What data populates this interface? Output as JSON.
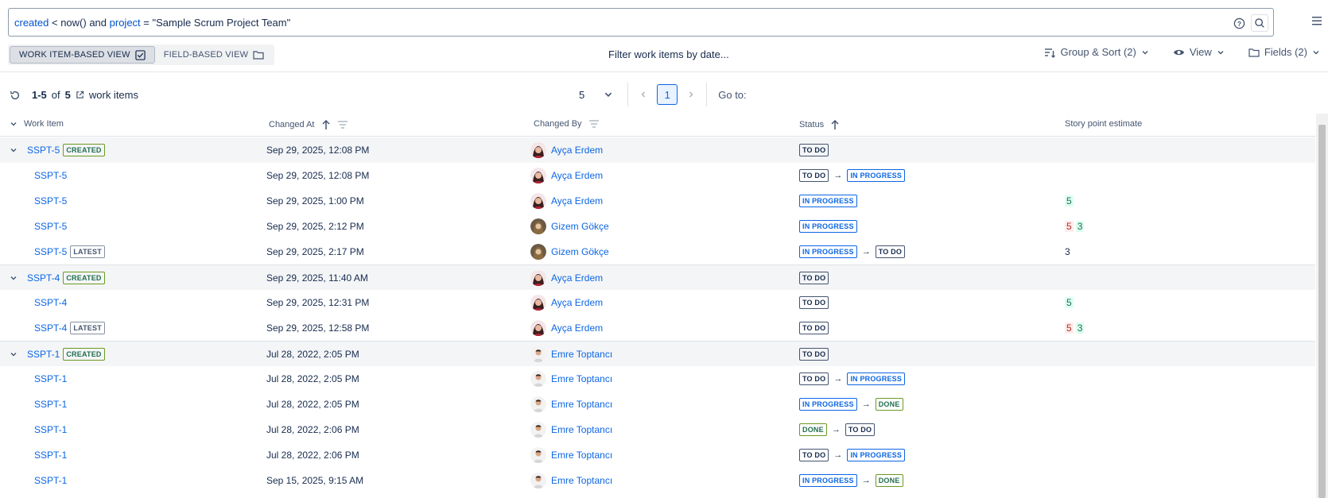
{
  "query": {
    "parts": [
      {
        "text": "created",
        "type": "kw"
      },
      {
        "text": " < ",
        "type": "op"
      },
      {
        "text": "now()",
        "type": "func"
      },
      {
        "text": " and ",
        "type": "op"
      },
      {
        "text": " project",
        "type": "kw"
      },
      {
        "text": " = ",
        "type": "op"
      },
      {
        "text": "\"Sample Scrum Project Team\"",
        "type": "str"
      }
    ]
  },
  "view_toggle": {
    "work_item_label": "WORK ITEM-BASED VIEW",
    "field_label": "FIELD-BASED VIEW"
  },
  "filter_date_label": "Filter work items by date...",
  "toolbar": {
    "group_sort": "Group & Sort (2)",
    "view": "View",
    "fields": "Fields (2)"
  },
  "results": {
    "range": "1-5",
    "of": "of",
    "total": "5",
    "suffix": "work items"
  },
  "pager": {
    "page_size": "5",
    "current_page": "1",
    "goto_label": "Go to:"
  },
  "columns": {
    "work_item": "Work Item",
    "changed_at": "Changed At",
    "changed_by": "Changed By",
    "status": "Status",
    "story_points": "Story point estimate"
  },
  "rows": [
    {
      "key": "SSPT-5",
      "parent": true,
      "badge": "CREATED",
      "date": "Sep 29, 2025, 12:08 PM",
      "by": "Ayça Erdem",
      "avatar": "f1",
      "status": [
        {
          "t": "TO DO",
          "c": "todo"
        }
      ],
      "sp": []
    },
    {
      "key": "SSPT-5",
      "parent": false,
      "badge": "",
      "date": "Sep 29, 2025, 12:08 PM",
      "by": "Ayça Erdem",
      "avatar": "f1",
      "status": [
        {
          "t": "TO DO",
          "c": "todo"
        },
        {
          "t": "IN PROGRESS",
          "c": "inprog"
        }
      ],
      "sp": []
    },
    {
      "key": "SSPT-5",
      "parent": false,
      "badge": "",
      "date": "Sep 29, 2025, 1:00 PM",
      "by": "Ayça Erdem",
      "avatar": "f1",
      "status": [
        {
          "t": "IN PROGRESS",
          "c": "inprog"
        }
      ],
      "sp": [
        {
          "v": "5",
          "c": "add"
        }
      ]
    },
    {
      "key": "SSPT-5",
      "parent": false,
      "badge": "",
      "date": "Sep 29, 2025, 2:12 PM",
      "by": "Gizem Gökçe",
      "avatar": "f2",
      "status": [
        {
          "t": "IN PROGRESS",
          "c": "inprog"
        }
      ],
      "sp": [
        {
          "v": "5",
          "c": "del"
        },
        {
          "v": "3",
          "c": "add"
        }
      ]
    },
    {
      "key": "SSPT-5",
      "parent": false,
      "badge": "LATEST",
      "date": "Sep 29, 2025, 2:17 PM",
      "by": "Gizem Gökçe",
      "avatar": "f2",
      "status": [
        {
          "t": "IN PROGRESS",
          "c": "inprog"
        },
        {
          "t": "TO DO",
          "c": "todo"
        }
      ],
      "sp": [
        {
          "v": "3",
          "c": "plain"
        }
      ]
    },
    {
      "key": "SSPT-4",
      "parent": true,
      "badge": "CREATED",
      "date": "Sep 29, 2025, 11:40 AM",
      "by": "Ayça Erdem",
      "avatar": "f1",
      "status": [
        {
          "t": "TO DO",
          "c": "todo"
        }
      ],
      "sp": []
    },
    {
      "key": "SSPT-4",
      "parent": false,
      "badge": "",
      "date": "Sep 29, 2025, 12:31 PM",
      "by": "Ayça Erdem",
      "avatar": "f1",
      "status": [
        {
          "t": "TO DO",
          "c": "todo"
        }
      ],
      "sp": [
        {
          "v": "5",
          "c": "add"
        }
      ]
    },
    {
      "key": "SSPT-4",
      "parent": false,
      "badge": "LATEST",
      "date": "Sep 29, 2025, 12:58 PM",
      "by": "Ayça Erdem",
      "avatar": "f1",
      "status": [
        {
          "t": "TO DO",
          "c": "todo"
        }
      ],
      "sp": [
        {
          "v": "5",
          "c": "del"
        },
        {
          "v": "3",
          "c": "add"
        }
      ]
    },
    {
      "key": "SSPT-1",
      "parent": true,
      "badge": "CREATED",
      "date": "Jul 28, 2022, 2:05 PM",
      "by": "Emre Toptancı",
      "avatar": "m1",
      "status": [
        {
          "t": "TO DO",
          "c": "todo"
        }
      ],
      "sp": []
    },
    {
      "key": "SSPT-1",
      "parent": false,
      "badge": "",
      "date": "Jul 28, 2022, 2:05 PM",
      "by": "Emre Toptancı",
      "avatar": "m1",
      "status": [
        {
          "t": "TO DO",
          "c": "todo"
        },
        {
          "t": "IN PROGRESS",
          "c": "inprog"
        }
      ],
      "sp": []
    },
    {
      "key": "SSPT-1",
      "parent": false,
      "badge": "",
      "date": "Jul 28, 2022, 2:05 PM",
      "by": "Emre Toptancı",
      "avatar": "m1",
      "status": [
        {
          "t": "IN PROGRESS",
          "c": "inprog"
        },
        {
          "t": "DONE",
          "c": "done"
        }
      ],
      "sp": []
    },
    {
      "key": "SSPT-1",
      "parent": false,
      "badge": "",
      "date": "Jul 28, 2022, 2:06 PM",
      "by": "Emre Toptancı",
      "avatar": "m1",
      "status": [
        {
          "t": "DONE",
          "c": "done"
        },
        {
          "t": "TO DO",
          "c": "todo"
        }
      ],
      "sp": []
    },
    {
      "key": "SSPT-1",
      "parent": false,
      "badge": "",
      "date": "Jul 28, 2022, 2:06 PM",
      "by": "Emre Toptancı",
      "avatar": "m1",
      "status": [
        {
          "t": "TO DO",
          "c": "todo"
        },
        {
          "t": "IN PROGRESS",
          "c": "inprog"
        }
      ],
      "sp": []
    },
    {
      "key": "SSPT-1",
      "parent": false,
      "badge": "",
      "date": "Sep 15, 2025, 9:15 AM",
      "by": "Emre Toptancı",
      "avatar": "m1",
      "status": [
        {
          "t": "IN PROGRESS",
          "c": "inprog"
        },
        {
          "t": "DONE",
          "c": "done"
        }
      ],
      "sp": []
    }
  ],
  "icons": {
    "help": "help-icon",
    "search": "search-icon",
    "menu": "menu-icon",
    "refresh": "refresh-icon",
    "external": "external-link-icon"
  }
}
